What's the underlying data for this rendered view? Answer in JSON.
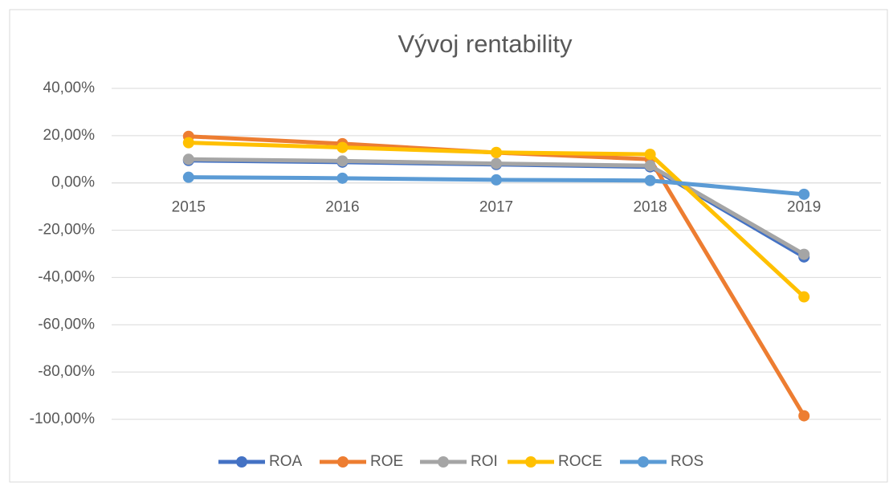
{
  "chart_data": {
    "type": "line",
    "title": "Vývoj rentability",
    "categories": [
      "2015",
      "2016",
      "2017",
      "2018",
      "2019"
    ],
    "series": [
      {
        "name": "ROA",
        "color": "#4472c4",
        "values": [
          9.5,
          8.8,
          7.8,
          6.8,
          -31.3
        ]
      },
      {
        "name": "ROE",
        "color": "#ed7d31",
        "values": [
          19.7,
          16.6,
          12.8,
          10.0,
          -98.5
        ]
      },
      {
        "name": "ROI",
        "color": "#a5a5a5",
        "values": [
          10.0,
          9.3,
          8.2,
          7.3,
          -30.2
        ]
      },
      {
        "name": "ROCE",
        "color": "#ffc000",
        "values": [
          17.0,
          15.0,
          12.9,
          12.1,
          -48.2
        ]
      },
      {
        "name": "ROS",
        "color": "#5b9bd5",
        "values": [
          2.4,
          2.0,
          1.3,
          1.0,
          -4.8
        ]
      }
    ],
    "ylim": [
      -100,
      40
    ],
    "yticks": [
      {
        "value": -100,
        "label": "-100,00%"
      },
      {
        "value": -80,
        "label": "-80,00%"
      },
      {
        "value": -60,
        "label": "-60,00%"
      },
      {
        "value": -40,
        "label": "-40,00%"
      },
      {
        "value": -20,
        "label": "-20,00%"
      },
      {
        "value": 0,
        "label": "0,00%"
      },
      {
        "value": 20,
        "label": "20,00%"
      },
      {
        "value": 40,
        "label": "40,00%"
      }
    ],
    "grid": true,
    "legend": "bottom"
  }
}
